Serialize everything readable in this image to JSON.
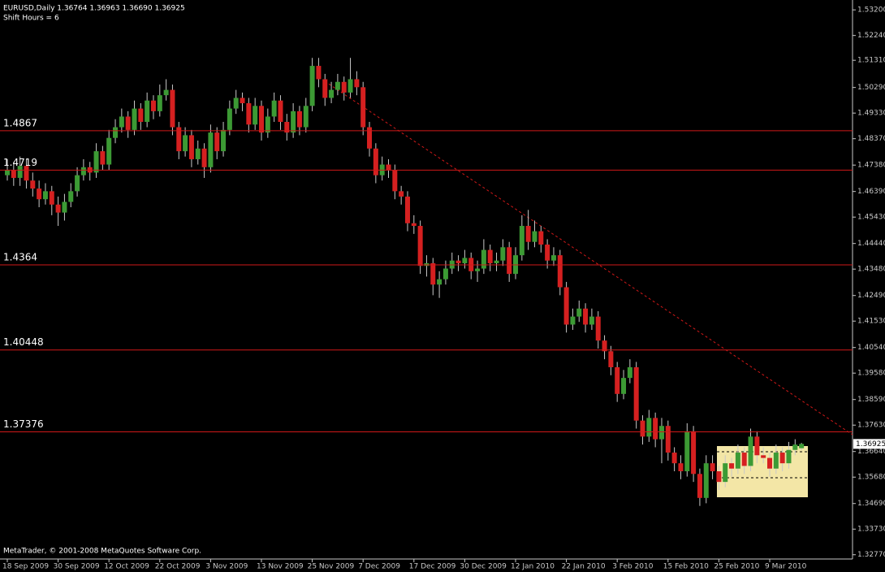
{
  "chart_data": {
    "type": "candlestick",
    "title": "EURUSD,Daily  1.36764 1.36963 1.36690 1.36925",
    "subtitle": "Shift Hours = 6",
    "footer": "MetaTrader, © 2001-2008 MetaQuotes Software Corp.",
    "up_color": "#3c9a34",
    "down_color": "#d52020",
    "categories": [
      "18 Sep 2009",
      null,
      null,
      null,
      null,
      null,
      null,
      null,
      "30 Sep 2009",
      null,
      null,
      null,
      null,
      null,
      null,
      null,
      "12 Oct 2009",
      null,
      null,
      null,
      null,
      null,
      null,
      null,
      "22 Oct 2009",
      null,
      null,
      null,
      null,
      null,
      null,
      null,
      "3 Nov 2009",
      null,
      null,
      null,
      null,
      null,
      null,
      null,
      "13 Nov 2009",
      null,
      null,
      null,
      null,
      null,
      null,
      null,
      "25 Nov 2009",
      null,
      null,
      null,
      null,
      null,
      null,
      null,
      "7 Dec 2009",
      null,
      null,
      null,
      null,
      null,
      null,
      null,
      "17 Dec 2009",
      null,
      null,
      null,
      null,
      null,
      null,
      null,
      "30 Dec 2009",
      null,
      null,
      null,
      null,
      null,
      null,
      null,
      "12 Jan 2010",
      null,
      null,
      null,
      null,
      null,
      null,
      null,
      "22 Jan 2010",
      null,
      null,
      null,
      null,
      null,
      null,
      null,
      "3 Feb 2010",
      null,
      null,
      null,
      null,
      null,
      null,
      null,
      "15 Feb 2010",
      null,
      null,
      null,
      null,
      null,
      null,
      null,
      "25 Feb 2010",
      null,
      null,
      null,
      null,
      null,
      null,
      null,
      "9 Mar 2010",
      null,
      null,
      null,
      null,
      null
    ],
    "ohlc": [
      [
        1.47,
        1.476,
        1.468,
        1.472
      ],
      [
        1.472,
        1.475,
        1.466,
        1.469
      ],
      [
        1.469,
        1.477,
        1.466,
        1.4735
      ],
      [
        1.4735,
        1.476,
        1.465,
        1.468
      ],
      [
        1.468,
        1.471,
        1.462,
        1.465
      ],
      [
        1.465,
        1.468,
        1.458,
        1.461
      ],
      [
        1.461,
        1.467,
        1.459,
        1.464
      ],
      [
        1.464,
        1.466,
        1.455,
        1.459
      ],
      [
        1.459,
        1.462,
        1.451,
        1.456
      ],
      [
        1.456,
        1.463,
        1.453,
        1.46
      ],
      [
        1.46,
        1.467,
        1.458,
        1.464
      ],
      [
        1.464,
        1.473,
        1.462,
        1.47
      ],
      [
        1.47,
        1.476,
        1.468,
        1.473
      ],
      [
        1.473,
        1.475,
        1.468,
        1.471
      ],
      [
        1.471,
        1.482,
        1.469,
        1.479
      ],
      [
        1.479,
        1.481,
        1.472,
        1.474
      ],
      [
        1.474,
        1.487,
        1.472,
        1.484
      ],
      [
        1.484,
        1.491,
        1.482,
        1.488
      ],
      [
        1.488,
        1.495,
        1.486,
        1.492
      ],
      [
        1.492,
        1.494,
        1.484,
        1.487
      ],
      [
        1.487,
        1.498,
        1.485,
        1.495
      ],
      [
        1.495,
        1.497,
        1.487,
        1.49
      ],
      [
        1.49,
        1.501,
        1.488,
        1.498
      ],
      [
        1.498,
        1.5,
        1.491,
        1.494
      ],
      [
        1.494,
        1.504,
        1.492,
        1.5
      ],
      [
        1.5,
        1.506,
        1.498,
        1.502
      ],
      [
        1.502,
        1.504,
        1.485,
        1.488
      ],
      [
        1.488,
        1.49,
        1.476,
        1.479
      ],
      [
        1.479,
        1.488,
        1.477,
        1.485
      ],
      [
        1.485,
        1.487,
        1.473,
        1.476
      ],
      [
        1.476,
        1.483,
        1.474,
        1.48
      ],
      [
        1.48,
        1.482,
        1.469,
        1.473
      ],
      [
        1.473,
        1.489,
        1.471,
        1.486
      ],
      [
        1.486,
        1.488,
        1.476,
        1.479
      ],
      [
        1.479,
        1.49,
        1.477,
        1.487
      ],
      [
        1.487,
        1.498,
        1.485,
        1.495
      ],
      [
        1.495,
        1.502,
        1.493,
        1.499
      ],
      [
        1.499,
        1.501,
        1.494,
        1.497
      ],
      [
        1.497,
        1.499,
        1.486,
        1.489
      ],
      [
        1.489,
        1.499,
        1.487,
        1.496
      ],
      [
        1.496,
        1.498,
        1.483,
        1.486
      ],
      [
        1.486,
        1.495,
        1.484,
        1.492
      ],
      [
        1.492,
        1.501,
        1.49,
        1.498
      ],
      [
        1.498,
        1.5,
        1.487,
        1.49
      ],
      [
        1.49,
        1.493,
        1.483,
        1.486
      ],
      [
        1.486,
        1.497,
        1.484,
        1.494
      ],
      [
        1.494,
        1.496,
        1.485,
        1.488
      ],
      [
        1.488,
        1.499,
        1.486,
        1.496
      ],
      [
        1.496,
        1.514,
        1.494,
        1.511
      ],
      [
        1.511,
        1.514,
        1.503,
        1.506
      ],
      [
        1.506,
        1.508,
        1.496,
        1.499
      ],
      [
        1.499,
        1.505,
        1.497,
        1.502
      ],
      [
        1.502,
        1.508,
        1.5,
        1.505
      ],
      [
        1.505,
        1.507,
        1.498,
        1.501
      ],
      [
        1.501,
        1.514,
        1.499,
        1.506
      ],
      [
        1.506,
        1.509,
        1.5,
        1.503
      ],
      [
        1.503,
        1.505,
        1.485,
        1.488
      ],
      [
        1.488,
        1.49,
        1.477,
        1.48
      ],
      [
        1.48,
        1.482,
        1.467,
        1.47
      ],
      [
        1.47,
        1.477,
        1.468,
        1.474
      ],
      [
        1.474,
        1.476,
        1.469,
        1.472
      ],
      [
        1.472,
        1.474,
        1.461,
        1.464
      ],
      [
        1.464,
        1.466,
        1.459,
        1.462
      ],
      [
        1.462,
        1.464,
        1.449,
        1.452
      ],
      [
        1.452,
        1.455,
        1.448,
        1.451
      ],
      [
        1.451,
        1.453,
        1.433,
        1.436
      ],
      [
        1.436,
        1.44,
        1.432,
        1.437
      ],
      [
        1.437,
        1.439,
        1.425,
        1.429
      ],
      [
        1.429,
        1.434,
        1.424,
        1.431
      ],
      [
        1.431,
        1.438,
        1.429,
        1.435
      ],
      [
        1.435,
        1.441,
        1.433,
        1.438
      ],
      [
        1.438,
        1.44,
        1.434,
        1.437
      ],
      [
        1.437,
        1.442,
        1.435,
        1.439
      ],
      [
        1.439,
        1.441,
        1.431,
        1.434
      ],
      [
        1.434,
        1.438,
        1.43,
        1.435
      ],
      [
        1.435,
        1.446,
        1.433,
        1.442
      ],
      [
        1.442,
        1.444,
        1.434,
        1.437
      ],
      [
        1.437,
        1.441,
        1.434,
        1.438
      ],
      [
        1.438,
        1.446,
        1.436,
        1.443
      ],
      [
        1.443,
        1.445,
        1.43,
        1.433
      ],
      [
        1.433,
        1.443,
        1.431,
        1.44
      ],
      [
        1.44,
        1.455,
        1.438,
        1.451
      ],
      [
        1.451,
        1.457,
        1.442,
        1.445
      ],
      [
        1.445,
        1.453,
        1.443,
        1.449
      ],
      [
        1.449,
        1.451,
        1.441,
        1.444
      ],
      [
        1.444,
        1.446,
        1.435,
        1.438
      ],
      [
        1.438,
        1.443,
        1.436,
        1.44
      ],
      [
        1.44,
        1.442,
        1.425,
        1.428
      ],
      [
        1.428,
        1.43,
        1.411,
        1.414
      ],
      [
        1.414,
        1.42,
        1.412,
        1.417
      ],
      [
        1.417,
        1.423,
        1.415,
        1.42
      ],
      [
        1.42,
        1.422,
        1.411,
        1.414
      ],
      [
        1.414,
        1.42,
        1.412,
        1.417
      ],
      [
        1.417,
        1.419,
        1.405,
        1.408
      ],
      [
        1.408,
        1.41,
        1.401,
        1.404
      ],
      [
        1.404,
        1.406,
        1.395,
        1.398
      ],
      [
        1.398,
        1.4,
        1.385,
        1.388
      ],
      [
        1.388,
        1.397,
        1.386,
        1.394
      ],
      [
        1.394,
        1.401,
        1.392,
        1.398
      ],
      [
        1.398,
        1.4,
        1.375,
        1.378
      ],
      [
        1.378,
        1.38,
        1.369,
        1.372
      ],
      [
        1.372,
        1.382,
        1.37,
        1.379
      ],
      [
        1.379,
        1.381,
        1.368,
        1.371
      ],
      [
        1.371,
        1.379,
        1.362,
        1.376
      ],
      [
        1.376,
        1.378,
        1.363,
        1.366
      ],
      [
        1.366,
        1.368,
        1.359,
        1.362
      ],
      [
        1.362,
        1.365,
        1.356,
        1.359
      ],
      [
        1.359,
        1.377,
        1.357,
        1.374
      ],
      [
        1.374,
        1.376,
        1.355,
        1.358
      ],
      [
        1.358,
        1.36,
        1.346,
        1.349
      ],
      [
        1.349,
        1.365,
        1.347,
        1.362
      ],
      [
        1.362,
        1.365,
        1.356,
        1.359
      ],
      [
        1.359,
        1.361,
        1.352,
        1.355
      ],
      [
        1.355,
        1.365,
        1.353,
        1.362
      ],
      [
        1.362,
        1.364,
        1.357,
        1.36
      ],
      [
        1.36,
        1.369,
        1.358,
        1.366
      ],
      [
        1.366,
        1.368,
        1.358,
        1.361
      ],
      [
        1.361,
        1.375,
        1.359,
        1.372
      ],
      [
        1.372,
        1.374,
        1.362,
        1.365
      ],
      [
        1.365,
        1.368,
        1.362,
        1.364
      ],
      [
        1.364,
        1.366,
        1.357,
        1.36
      ],
      [
        1.36,
        1.369,
        1.358,
        1.366
      ],
      [
        1.366,
        1.368,
        1.359,
        1.362
      ],
      [
        1.362,
        1.37,
        1.36,
        1.367
      ],
      [
        1.367,
        1.371,
        1.365,
        1.369
      ],
      [
        1.36764,
        1.36963,
        1.3669,
        1.36925
      ]
    ],
    "ylim": [
      1.3261,
      1.5357
    ],
    "yticks": [
      {
        "value": 1.532,
        "label": "1.53200"
      },
      {
        "value": 1.5224,
        "label": "1.52240"
      },
      {
        "value": 1.5131,
        "label": "1.51310"
      },
      {
        "value": 1.5029,
        "label": "1.50290"
      },
      {
        "value": 1.4933,
        "label": "1.49330"
      },
      {
        "value": 1.4837,
        "label": "1.48370"
      },
      {
        "value": 1.4738,
        "label": "1.47380"
      },
      {
        "value": 1.4639,
        "label": "1.46390"
      },
      {
        "value": 1.4543,
        "label": "1.45430"
      },
      {
        "value": 1.4444,
        "label": "1.44440"
      },
      {
        "value": 1.4348,
        "label": "1.43480"
      },
      {
        "value": 1.4249,
        "label": "1.42490"
      },
      {
        "value": 1.4153,
        "label": "1.41530"
      },
      {
        "value": 1.4054,
        "label": "1.40540"
      },
      {
        "value": 1.3958,
        "label": "1.39580"
      },
      {
        "value": 1.3859,
        "label": "1.38590"
      },
      {
        "value": 1.3763,
        "label": "1.37630"
      },
      {
        "value": 1.3664,
        "label": "1.36640"
      },
      {
        "value": 1.3568,
        "label": "1.35680"
      },
      {
        "value": 1.3469,
        "label": "1.34690"
      },
      {
        "value": 1.3373,
        "label": "1.33730"
      },
      {
        "value": 1.3277,
        "label": "1.32770"
      }
    ],
    "levels": [
      1.4867,
      1.4719,
      1.4364,
      1.40448,
      1.37376
    ],
    "level_color": "#d01818",
    "last_price": 1.36925
  }
}
